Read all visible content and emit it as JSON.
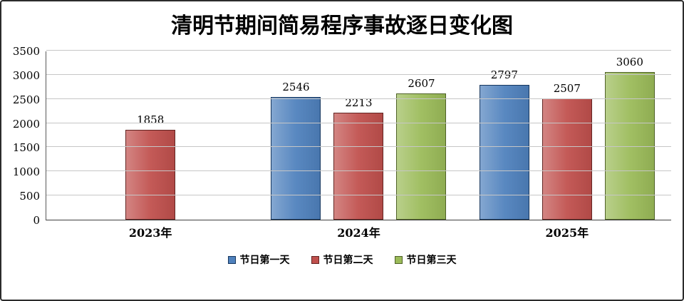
{
  "chart_data": {
    "type": "bar",
    "title": "清明节期间简易程序事故逐日变化图",
    "categories": [
      "2023年",
      "2024年",
      "2025年"
    ],
    "series": [
      {
        "name": "节日第一天",
        "color": "#4F81BD",
        "border_color": "#17375E",
        "values": [
          null,
          2546,
          2797
        ]
      },
      {
        "name": "节日第二天",
        "color": "#C0504D",
        "border_color": "#632523",
        "values": [
          1858,
          2213,
          2507
        ]
      },
      {
        "name": "节日第三天",
        "color": "#9BBB59",
        "border_color": "#4F6228",
        "values": [
          null,
          2607,
          3060
        ]
      }
    ],
    "ylim": [
      0,
      3500
    ],
    "yticks": [
      0,
      500,
      1000,
      1500,
      2000,
      2500,
      3000,
      3500
    ],
    "grid": true,
    "legend_position": "bottom",
    "colors": {
      "gridline": "#c6c6c6",
      "axis": "#404040",
      "text": "#000000"
    }
  }
}
